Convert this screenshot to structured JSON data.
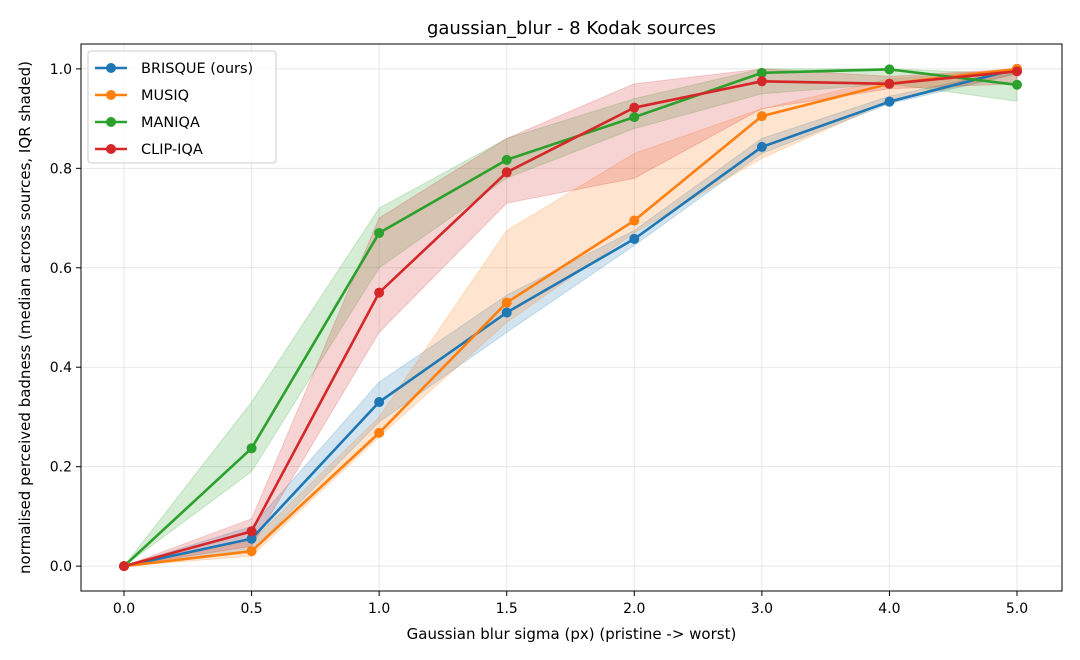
{
  "chart_data": {
    "type": "line",
    "title": "gaussian_blur - 8 Kodak sources",
    "xlabel": "Gaussian blur sigma (px)  (pristine -> worst)",
    "ylabel": "normalised perceived badness  (median across sources, IQR shaded)",
    "categories": [
      "0.0",
      "0.5",
      "1.0",
      "1.5",
      "2.0",
      "3.0",
      "4.0",
      "5.0"
    ],
    "x_scale": "categorical (evenly spaced)",
    "ylim": [
      -0.05,
      1.05
    ],
    "yticks": [
      "0.0",
      "0.2",
      "0.4",
      "0.6",
      "0.8",
      "1.0"
    ],
    "grid": true,
    "legend_position": "top-left",
    "series": [
      {
        "name": "BRISQUE (ours)",
        "color": "#1f77b4",
        "values": [
          0.0,
          0.055,
          0.33,
          0.51,
          0.658,
          0.843,
          0.934,
          1.0
        ],
        "iqr_low": [
          0.0,
          0.03,
          0.29,
          0.47,
          0.645,
          0.83,
          0.93,
          0.99
        ],
        "iqr_high": [
          0.0,
          0.08,
          0.37,
          0.545,
          0.675,
          0.86,
          0.945,
          1.0
        ]
      },
      {
        "name": "MUSIQ",
        "color": "#ff7f0e",
        "values": [
          0.0,
          0.03,
          0.268,
          0.53,
          0.695,
          0.905,
          0.97,
          1.0
        ],
        "iqr_low": [
          0.0,
          0.02,
          0.26,
          0.49,
          0.67,
          0.82,
          0.935,
          0.99
        ],
        "iqr_high": [
          0.0,
          0.05,
          0.3,
          0.675,
          0.83,
          0.92,
          0.98,
          1.0
        ]
      },
      {
        "name": "MANIQA",
        "color": "#2ca02c",
        "values": [
          0.0,
          0.237,
          0.67,
          0.817,
          0.903,
          0.992,
          0.999,
          0.968
        ],
        "iqr_low": [
          0.0,
          0.19,
          0.6,
          0.78,
          0.88,
          0.95,
          0.97,
          0.935
        ],
        "iqr_high": [
          0.0,
          0.33,
          0.72,
          0.86,
          0.94,
          1.0,
          1.0,
          0.99
        ]
      },
      {
        "name": "CLIP-IQA",
        "color": "#d62728",
        "values": [
          0.0,
          0.07,
          0.55,
          0.792,
          0.922,
          0.975,
          0.97,
          0.995
        ],
        "iqr_low": [
          0.0,
          0.04,
          0.47,
          0.73,
          0.78,
          0.92,
          0.96,
          0.97
        ],
        "iqr_high": [
          0.0,
          0.095,
          0.7,
          0.86,
          0.97,
          1.0,
          0.985,
          1.0
        ]
      }
    ]
  }
}
